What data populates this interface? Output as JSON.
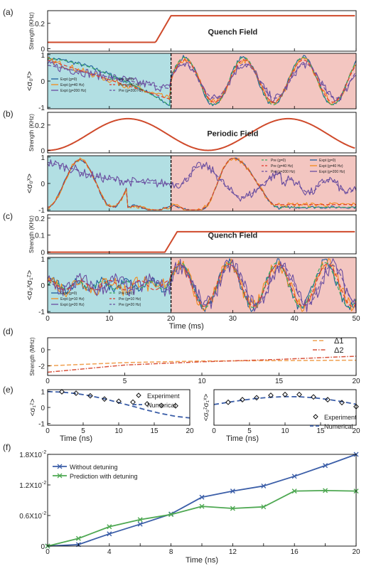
{
  "colors": {
    "cyan": "#b2dfe3",
    "pink": "#f3c6c1",
    "field": "#cf4a2b",
    "blue": "#1f5f9e",
    "orange": "#f28a1a",
    "purple": "#6a4ea0",
    "green": "#3aa860",
    "red": "#e03a2a",
    "detune1": "#f0a050",
    "detune2": "#d9533c",
    "curve_blue": "#3b5ea8",
    "curve_green": "#4ea852"
  },
  "panels": [
    {
      "id": "a",
      "label": "(a)",
      "field": {
        "title": "Quench Field",
        "ylabel": "Strength (KHz)",
        "ytick_labels": [
          "0",
          "0.2"
        ],
        "yticks": [
          0,
          0.2
        ],
        "ylim": [
          -0.02,
          0.3
        ],
        "kind": "quench",
        "low": 0.05,
        "high": 0.26,
        "t0": 17.5,
        "t1": 20.0
      },
      "obs": {
        "ylabel": "<σ₀ˣ>",
        "ytick_labels": [
          "-1",
          "0",
          "1"
        ],
        "yticks": [
          -1,
          0,
          1
        ],
        "ylim": [
          -1.05,
          1.05
        ],
        "kind": "a",
        "legend": [
          "Expt (g=0)",
          "Expt (g=40 Hz)",
          "Expt (g=200 Hz)",
          "Pre (g=0)",
          "Pre (g=40 Hz)",
          "Pre (g=200 Hz)"
        ]
      }
    },
    {
      "id": "b",
      "label": "(b)",
      "field": {
        "title": "Periodic Field",
        "ylabel": "Strength (KHz)",
        "ytick_labels": [
          "0",
          "0.2"
        ],
        "yticks": [
          0,
          0.2
        ],
        "ylim": [
          -0.02,
          0.3
        ],
        "kind": "periodic",
        "mid": 0.125,
        "amp": 0.125,
        "period": 26.0,
        "phase": -6.5
      },
      "obs": {
        "ylabel": "<σ₀ˣ>",
        "ytick_labels": [
          "-1",
          "0",
          "1"
        ],
        "yticks": [
          -1,
          0,
          1
        ],
        "ylim": [
          -1.05,
          1.05
        ],
        "kind": "b",
        "legend": [
          "Pre (g=0)",
          "Expt (g=0)",
          "Pre (g=40 Hz)",
          "Expt (g=40 Hz)",
          "Pre (g=200 Hz)",
          "Expt (g=200 Hz)"
        ]
      }
    },
    {
      "id": "c",
      "label": "(c)",
      "field": {
        "title": "Quench Field",
        "ylabel": "Strength (KHz)",
        "ytick_labels": [
          "0",
          "0.1",
          "0.2"
        ],
        "yticks": [
          0,
          0.1,
          0.2
        ],
        "ylim": [
          -0.01,
          0.22
        ],
        "kind": "quench",
        "low": 0.0,
        "high": 0.12,
        "t0": 19.0,
        "t1": 21.0
      },
      "obs": {
        "ylabel": "<σ₀ˣσ₁ᶻ>",
        "ytick_labels": [
          "-1",
          "0",
          "1"
        ],
        "yticks": [
          -1,
          0,
          1
        ],
        "ylim": [
          -1.05,
          1.05
        ],
        "kind": "c",
        "legend": [
          "Expt (g=0)",
          "Expt (g=10 Hz)",
          "Expt (g=20 Hz)",
          "Pre (g=0)",
          "Pre (g=10 Hz)",
          "Pre (g=20 Hz)"
        ],
        "xlabel": "Time (ms)",
        "xtick_labels": [
          "0",
          "10",
          "20",
          "30",
          "40",
          "50"
        ]
      }
    }
  ],
  "time_xlim": [
    0,
    50
  ],
  "d": {
    "label": "(d)",
    "ylabel": "Strength (MHz)",
    "ytick_labels": [
      "0",
      "-2"
    ],
    "yticks": [
      0,
      -2
    ],
    "ylim": [
      -3.2,
      1.5
    ],
    "xlim": [
      0,
      20
    ],
    "xtick_labels": [
      "0",
      "5",
      "10",
      "15",
      "20"
    ],
    "series": [
      {
        "name": "Δ1",
        "x": [
          0,
          5,
          10,
          15,
          20
        ],
        "y": [
          -2.0,
          -1.6,
          -1.4,
          -1.35,
          -1.3
        ]
      },
      {
        "name": "Δ2",
        "x": [
          0,
          5,
          10,
          15,
          20
        ],
        "y": [
          -2.8,
          -1.9,
          -1.5,
          -1.2,
          -0.8
        ]
      }
    ]
  },
  "e": {
    "label": "(e)",
    "left": {
      "ylabel": "<σ₁ᶻ>",
      "xlabel": "Time (ns)",
      "xtick_labels": [
        "0",
        "5",
        "10",
        "15",
        "20"
      ],
      "ytick_labels": [
        "-1",
        "0",
        "1"
      ],
      "yticks": [
        -1,
        0,
        1
      ],
      "ylim": [
        -1.1,
        1.1
      ],
      "xlim": [
        0,
        20
      ],
      "legend": [
        "Experiment",
        "Numerical"
      ],
      "experiment": {
        "x": [
          2,
          4,
          6,
          8,
          10,
          12,
          14,
          16,
          18
        ],
        "y": [
          0.97,
          0.88,
          0.72,
          0.52,
          0.38,
          0.33,
          0.22,
          0.12,
          0.1
        ]
      },
      "numerical": {
        "x": [
          0,
          2,
          4,
          6,
          8,
          10,
          12,
          14,
          16,
          18,
          20
        ],
        "y": [
          0.98,
          0.95,
          0.86,
          0.72,
          0.53,
          0.3,
          0.07,
          -0.17,
          -0.38,
          -0.55,
          -0.65
        ]
      }
    },
    "right": {
      "ylabel": "<σ₀ᶻσ₁ˣ>",
      "xlabel": "Time (ns)",
      "xtick_labels": [
        "0",
        "5",
        "10",
        "15",
        "20"
      ],
      "xlim": [
        0,
        20
      ],
      "ylim": [
        -1.1,
        1.1
      ],
      "legend": [
        "Experiment",
        "Numerical"
      ],
      "experiment": {
        "x": [
          2,
          4,
          6,
          8,
          10,
          12,
          14,
          16,
          18,
          20
        ],
        "y": [
          0.32,
          0.48,
          0.6,
          0.75,
          0.8,
          0.8,
          0.65,
          0.48,
          0.3,
          0.05
        ]
      },
      "numerical": {
        "x": [
          0,
          2,
          4,
          6,
          8,
          10,
          12,
          14,
          16,
          18,
          20
        ],
        "y": [
          0.18,
          0.32,
          0.45,
          0.56,
          0.63,
          0.67,
          0.66,
          0.6,
          0.5,
          0.36,
          0.2
        ]
      }
    }
  },
  "chart_data": {
    "type": "line",
    "label": "(f)",
    "x": [
      0,
      2,
      4,
      6,
      8,
      10,
      12,
      14,
      16,
      18,
      20
    ],
    "xlabel": "Time (ns)",
    "xlim": [
      0,
      20
    ],
    "ylim": [
      0,
      0.018
    ],
    "xtick_labels": [
      "0",
      "2",
      "4",
      "6",
      "8",
      "10",
      "12",
      "14",
      "16",
      "18",
      "20"
    ],
    "ytick_values": [
      0,
      0.006,
      0.012,
      0.018
    ],
    "ytick_labels": [
      "0",
      "0.6X10",
      "1.2X10",
      "1.8X10"
    ],
    "ytick_exp": "-2",
    "series": [
      {
        "name": "Without detuning",
        "values": [
          0.0,
          0.0003,
          0.0024,
          0.0043,
          0.0063,
          0.0096,
          0.0108,
          0.0118,
          0.0137,
          0.0158,
          0.018
        ]
      },
      {
        "name": "Prediction with detuning",
        "values": [
          0.0,
          0.0015,
          0.0038,
          0.0052,
          0.0062,
          0.0078,
          0.0074,
          0.0077,
          0.0108,
          0.0109,
          0.0108
        ]
      }
    ]
  }
}
